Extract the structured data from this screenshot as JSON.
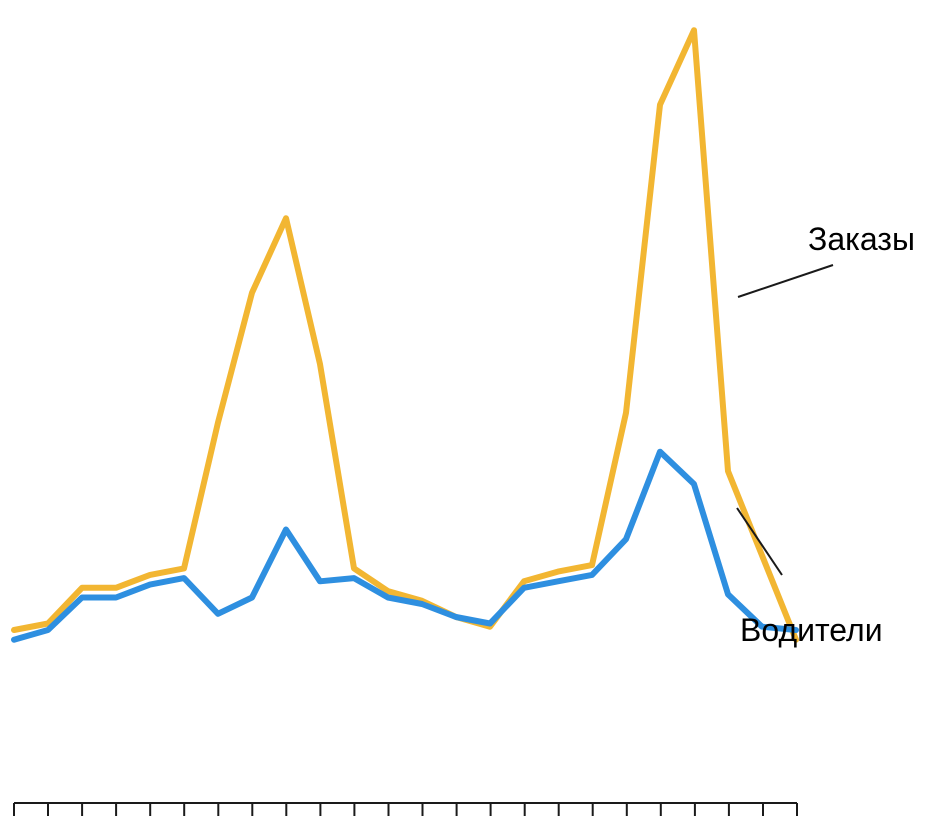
{
  "chart_data": {
    "type": "line",
    "x": [
      1,
      2,
      3,
      4,
      5,
      6,
      7,
      8,
      9,
      10,
      11,
      12,
      13,
      14,
      15,
      16,
      17,
      18,
      19,
      20,
      21,
      22,
      23,
      24
    ],
    "series": [
      {
        "name": "Заказы",
        "color": "#F2B632",
        "values": [
          3,
          5,
          16,
          16,
          20,
          22,
          67,
          107,
          130,
          85,
          22,
          15,
          12,
          7,
          4,
          18,
          21,
          23,
          70,
          165,
          188,
          52,
          26,
          0
        ]
      },
      {
        "name": "Водители",
        "color": "#2E8FE0",
        "values": [
          0,
          3,
          13,
          13,
          17,
          19,
          8,
          13,
          34,
          18,
          19,
          13,
          11,
          7,
          5,
          16,
          18,
          20,
          31,
          58,
          48,
          14,
          4,
          3
        ]
      }
    ],
    "ylim": [
      -55,
      193
    ],
    "grid": false,
    "legend": "inline-right"
  }
}
